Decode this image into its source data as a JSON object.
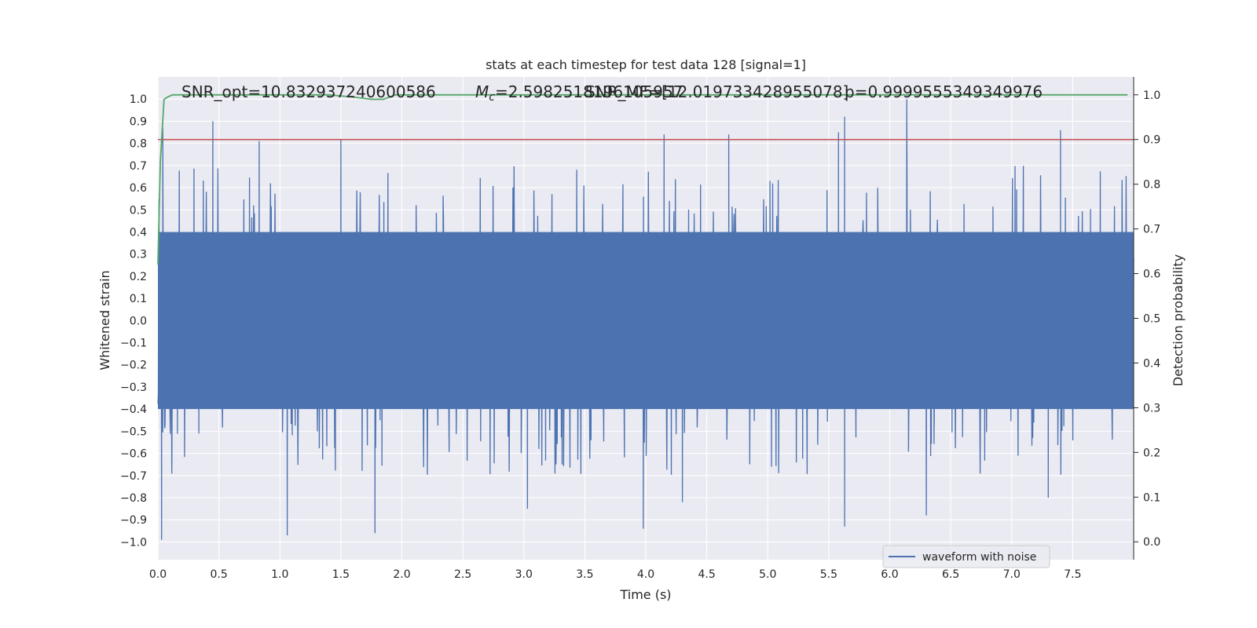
{
  "chart_data": {
    "type": "line",
    "title": "stats at each timestep for test data 128 [signal=1]",
    "xlabel": "Time (s)",
    "ylabel": "Whitened strain",
    "y2label": "Detection probability",
    "xlim": [
      0.0,
      8.0
    ],
    "ylim": [
      -1.08,
      1.1
    ],
    "y2lim": [
      -0.04,
      1.04
    ],
    "xticks": [
      "0.0",
      "0.5",
      "1.0",
      "1.5",
      "2.0",
      "2.5",
      "3.0",
      "3.5",
      "4.0",
      "4.5",
      "5.0",
      "5.5",
      "6.0",
      "6.5",
      "7.0",
      "7.5"
    ],
    "yticks": [
      "1.0",
      "0.9",
      "0.8",
      "0.7",
      "0.6",
      "0.5",
      "0.4",
      "0.3",
      "0.2",
      "0.1",
      "0.0",
      "−0.1",
      "−0.2",
      "−0.3",
      "−0.4",
      "−0.5",
      "−0.6",
      "−0.7",
      "−0.8",
      "−0.9",
      "−1.0"
    ],
    "y2ticks": [
      "1.0",
      "0.9",
      "0.8",
      "0.7",
      "0.6",
      "0.5",
      "0.4",
      "0.3",
      "0.2",
      "0.1",
      "0.0"
    ],
    "grid": true,
    "legend": {
      "position": "lower-right",
      "entries": [
        "waveform with noise"
      ]
    },
    "annotations": [
      "SNR_opt=10.832937240600586",
      "=2.5982518196105957",
      "SNR_MF=[12.019733428955078]",
      "p=0.9999555349349976"
    ],
    "annotation_mc_symbol": "M",
    "annotation_mc_subscript": "c",
    "threshold": {
      "value_y2": 0.9
    },
    "series": [
      {
        "name": "waveform with noise",
        "kind": "noise",
        "approx_range": [
          -0.99,
          1.0
        ],
        "notable_peaks": [
          [
            0.04,
            0.87
          ],
          [
            0.45,
            0.9
          ],
          [
            0.83,
            0.81
          ],
          [
            1.5,
            0.82
          ],
          [
            4.15,
            0.84
          ],
          [
            4.68,
            0.84
          ],
          [
            5.58,
            0.85
          ],
          [
            5.63,
            0.92
          ],
          [
            6.14,
            1.0
          ],
          [
            7.4,
            0.86
          ]
        ],
        "notable_troughs": [
          [
            0.03,
            -0.99
          ],
          [
            1.06,
            -0.97
          ],
          [
            1.78,
            -0.96
          ],
          [
            3.03,
            -0.85
          ],
          [
            3.98,
            -0.94
          ],
          [
            4.3,
            -0.82
          ],
          [
            5.63,
            -0.93
          ],
          [
            6.3,
            -0.88
          ],
          [
            7.3,
            -0.8
          ]
        ]
      },
      {
        "kind": "probability",
        "axis": "right",
        "x": [
          0.0,
          0.02,
          0.05,
          0.08,
          0.12,
          0.2,
          0.5,
          1.0,
          1.4,
          1.6,
          1.75,
          1.85,
          1.95,
          2.1,
          3.0,
          4.0,
          5.0,
          6.0,
          7.0,
          7.95
        ],
        "values": [
          0.62,
          0.85,
          0.99,
          0.995,
          1.0,
          1.0,
          1.0,
          1.0,
          1.0,
          0.995,
          0.99,
          0.99,
          1.0,
          1.0,
          1.0,
          1.0,
          1.0,
          1.0,
          1.0,
          1.0
        ]
      }
    ],
    "colors": {
      "waveform": "#4c72b0",
      "probability": "#55a868",
      "threshold": "#c44e52",
      "background": "#eaeaf2",
      "grid": "#ffffff"
    }
  }
}
